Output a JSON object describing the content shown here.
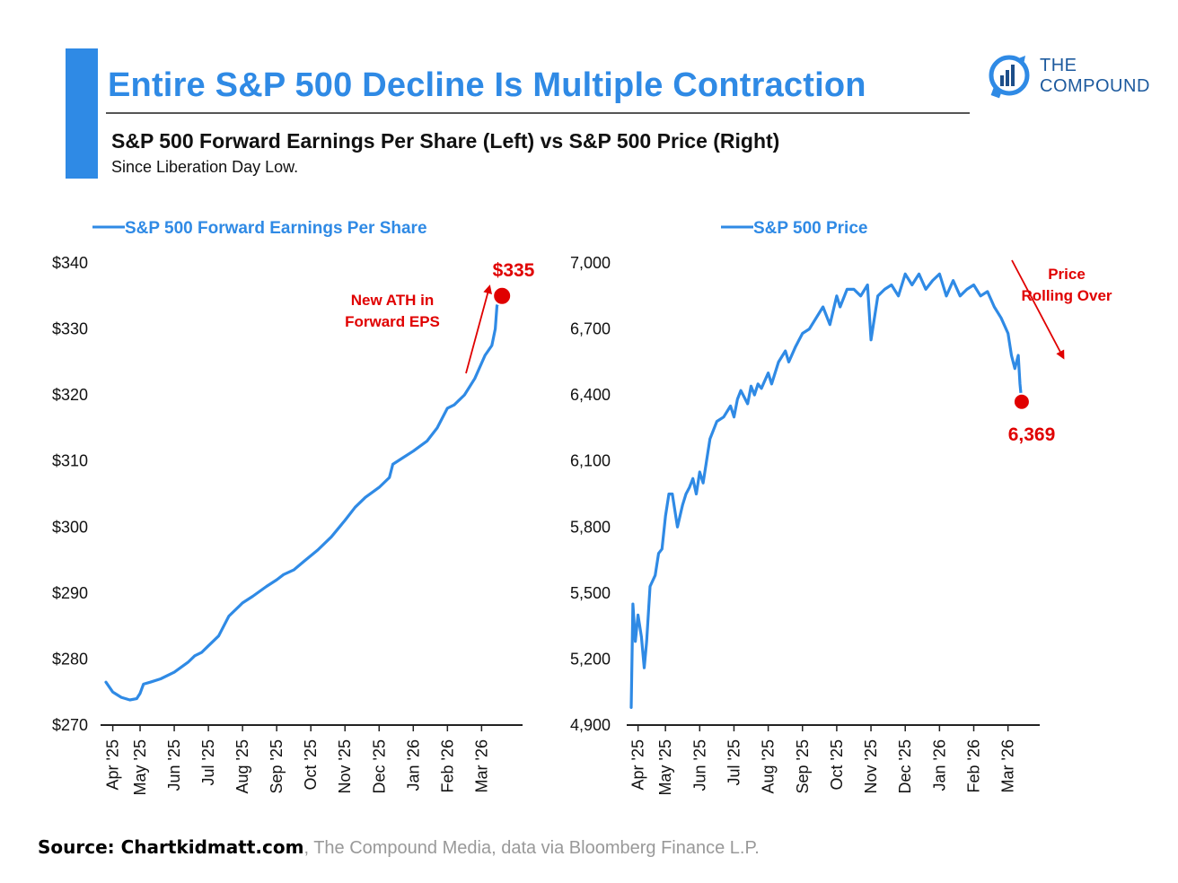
{
  "header": {
    "title": "Entire S&P 500 Decline Is Multiple Contraction",
    "subtitle": "S&P 500 Forward Earnings Per Share (Left) vs S&P 500 Price (Right)",
    "note": "Since Liberation Day Low.",
    "logo_line1": "THE",
    "logo_line2": "COMPOUND"
  },
  "source": {
    "strong": "Source: Chartkidmatt.com",
    "rest": ", The Compound Media, data via Bloomberg Finance L.P."
  },
  "colors": {
    "line": "#2f8ae5",
    "annotation": "#e00000",
    "title": "#2f8ae5"
  },
  "chart_data": [
    {
      "type": "line",
      "legend": "S&P 500 Forward Earnings Per Share",
      "ylim": [
        270,
        340
      ],
      "yticks": [
        "$340",
        "$330",
        "$320",
        "$310",
        "$300",
        "$290",
        "$280",
        "$270"
      ],
      "ytick_values": [
        340,
        330,
        320,
        310,
        300,
        290,
        280,
        270
      ],
      "xticks": [
        "Apr '25",
        "May '25",
        "Jun '25",
        "Jul '25",
        "Aug '25",
        "Sep '25",
        "Oct '25",
        "Nov '25",
        "Dec '25",
        "Jan '26",
        "Feb '26",
        "Mar '26"
      ],
      "xtick_pos": [
        0.2,
        1,
        2,
        3,
        4,
        5,
        6,
        7,
        8,
        9,
        10,
        11
      ],
      "xlim": [
        0,
        12.2
      ],
      "x": [
        0,
        0.2,
        0.45,
        0.7,
        0.9,
        1.0,
        1.1,
        1.3,
        1.6,
        2.0,
        2.4,
        2.6,
        2.8,
        3.0,
        3.3,
        3.6,
        3.9,
        4.0,
        4.3,
        4.7,
        5.0,
        5.2,
        5.5,
        5.8,
        6.2,
        6.6,
        7.0,
        7.3,
        7.6,
        8.0,
        8.3,
        8.4,
        8.7,
        9.0,
        9.4,
        9.7,
        10.0,
        10.2,
        10.5,
        10.8,
        11.1,
        11.3,
        11.4,
        11.45,
        11.6
      ],
      "series": [
        {
          "values": [
            276.5,
            275.0,
            274.2,
            273.8,
            274.0,
            274.8,
            276.2,
            276.5,
            277.0,
            278.0,
            279.5,
            280.5,
            281.0,
            282.0,
            283.5,
            286.5,
            288.0,
            288.5,
            289.5,
            291.0,
            292.0,
            292.8,
            293.5,
            294.8,
            296.5,
            298.5,
            301.0,
            303.0,
            304.5,
            306.0,
            307.5,
            309.5,
            310.5,
            311.5,
            313.0,
            315.0,
            318.0,
            318.5,
            320.0,
            322.5,
            326.0,
            327.5,
            330.0,
            333.5,
            335.0
          ]
        }
      ],
      "endpoint": {
        "x": 11.6,
        "y": 335,
        "label": "$335"
      },
      "annotation": "New ATH in\nForward EPS"
    },
    {
      "type": "line",
      "legend": "S&P 500 Price",
      "ylim": [
        4900,
        7000
      ],
      "yticks": [
        "7,000",
        "6,700",
        "6,400",
        "6,100",
        "5,800",
        "5,500",
        "5,200",
        "4,900"
      ],
      "ytick_values": [
        7000,
        6700,
        6400,
        6100,
        5800,
        5500,
        5200,
        4900
      ],
      "xticks": [
        "Apr '25",
        "May '25",
        "Jun '25",
        "Jul '25",
        "Aug '25",
        "Sep '25",
        "Oct '25",
        "Nov '25",
        "Dec '25",
        "Jan '26",
        "Feb '26",
        "Mar '26"
      ],
      "xtick_pos": [
        0.2,
        1,
        2,
        3,
        4,
        5,
        6,
        7,
        8,
        9,
        10,
        11
      ],
      "xlim": [
        0,
        11.9
      ],
      "x": [
        0,
        0.05,
        0.12,
        0.2,
        0.3,
        0.38,
        0.45,
        0.55,
        0.7,
        0.8,
        0.9,
        1.0,
        1.1,
        1.2,
        1.35,
        1.5,
        1.6,
        1.7,
        1.8,
        1.9,
        2.0,
        2.1,
        2.2,
        2.3,
        2.5,
        2.7,
        2.9,
        3.0,
        3.1,
        3.2,
        3.4,
        3.5,
        3.6,
        3.7,
        3.8,
        4.0,
        4.1,
        4.3,
        4.5,
        4.6,
        4.8,
        5.0,
        5.2,
        5.4,
        5.6,
        5.8,
        6.0,
        6.1,
        6.3,
        6.5,
        6.7,
        6.9,
        7.0,
        7.2,
        7.4,
        7.6,
        7.8,
        8.0,
        8.2,
        8.4,
        8.6,
        8.8,
        9.0,
        9.2,
        9.4,
        9.6,
        9.8,
        10.0,
        10.2,
        10.4,
        10.6,
        10.8,
        11.0,
        11.1,
        11.2,
        11.3,
        11.35,
        11.4
      ],
      "series": [
        {
          "values": [
            4980,
            5450,
            5280,
            5400,
            5300,
            5160,
            5280,
            5530,
            5580,
            5680,
            5700,
            5850,
            5950,
            5950,
            5800,
            5900,
            5950,
            5980,
            6020,
            5950,
            6050,
            6000,
            6100,
            6200,
            6280,
            6300,
            6350,
            6300,
            6380,
            6420,
            6360,
            6440,
            6400,
            6450,
            6430,
            6500,
            6450,
            6550,
            6600,
            6550,
            6620,
            6680,
            6700,
            6750,
            6800,
            6720,
            6850,
            6800,
            6880,
            6880,
            6850,
            6900,
            6650,
            6850,
            6880,
            6900,
            6850,
            6950,
            6900,
            6950,
            6880,
            6920,
            6950,
            6850,
            6920,
            6850,
            6880,
            6900,
            6850,
            6870,
            6800,
            6750,
            6680,
            6580,
            6520,
            6580,
            6450,
            6369
          ]
        }
      ],
      "endpoint": {
        "x": 11.4,
        "y": 6369,
        "label": "6,369"
      },
      "annotation": "Price\nRolling Over"
    }
  ]
}
